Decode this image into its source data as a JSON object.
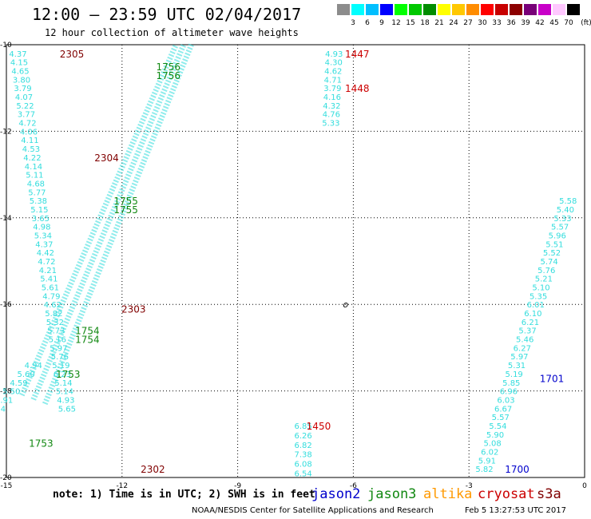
{
  "header": {
    "title": "12:00 – 23:59 UTC 02/04/2017",
    "subtitle": "12 hour collection of altimeter wave heights"
  },
  "legend": {
    "unit": "(ft)",
    "steps": [
      {
        "label": "3",
        "color": "#8c8c8c"
      },
      {
        "label": "6",
        "color": "#00ffff"
      },
      {
        "label": "9",
        "color": "#00bfff"
      },
      {
        "label": "12",
        "color": "#0000ff"
      },
      {
        "label": "15",
        "color": "#00ff00"
      },
      {
        "label": "18",
        "color": "#00c800"
      },
      {
        "label": "21",
        "color": "#008c00"
      },
      {
        "label": "24",
        "color": "#ffff00"
      },
      {
        "label": "27",
        "color": "#ffc800"
      },
      {
        "label": "30",
        "color": "#ff8c00"
      },
      {
        "label": "33",
        "color": "#ff0000"
      },
      {
        "label": "36",
        "color": "#c80000"
      },
      {
        "label": "39",
        "color": "#8c0000"
      },
      {
        "label": "42",
        "color": "#780078"
      },
      {
        "label": "45",
        "color": "#c800c8"
      },
      {
        "label": "70",
        "color": "#ffc8ff"
      },
      {
        "label": "",
        "color": "#000000"
      }
    ]
  },
  "map": {
    "lon_ticks": [
      "-15",
      "-12",
      "-9",
      "-6",
      "-3",
      "0"
    ],
    "lat_ticks": [
      "-10",
      "-12",
      "-14",
      "-16",
      "-18",
      "-20"
    ],
    "lon_range": [
      -15,
      0
    ],
    "lat_range": [
      -20,
      -10
    ],
    "grid": "dotted",
    "colors": {
      "wave": "#33dddd",
      "jason2": "#0000cc",
      "jason3": "#118811",
      "altika": "#ff9900",
      "cryosat": "#cc0000",
      "s3a": "#800000"
    },
    "time_labels": [
      {
        "text": "2305",
        "lon": -13.3,
        "lat": -10.2,
        "sat": "s3a"
      },
      {
        "text": "2304",
        "lon": -12.4,
        "lat": -12.6,
        "sat": "s3a"
      },
      {
        "text": "2303",
        "lon": -11.7,
        "lat": -16.1,
        "sat": "s3a"
      },
      {
        "text": "2302",
        "lon": -11.2,
        "lat": -19.8,
        "sat": "s3a"
      },
      {
        "text": "1756",
        "lon": -10.8,
        "lat": -10.5,
        "sat": "jason3"
      },
      {
        "text": "1756",
        "lon": -10.8,
        "lat": -10.7,
        "sat": "jason3"
      },
      {
        "text": "1755",
        "lon": -11.9,
        "lat": -13.6,
        "sat": "jason3"
      },
      {
        "text": "1755",
        "lon": -11.9,
        "lat": -13.8,
        "sat": "jason3"
      },
      {
        "text": "1754",
        "lon": -12.9,
        "lat": -16.6,
        "sat": "jason3"
      },
      {
        "text": "1754",
        "lon": -12.9,
        "lat": -16.8,
        "sat": "jason3"
      },
      {
        "text": "1753",
        "lon": -13.4,
        "lat": -17.6,
        "sat": "jason3"
      },
      {
        "text": "1753",
        "lon": -14.1,
        "lat": -19.2,
        "sat": "jason3"
      },
      {
        "text": "1447",
        "lon": -5.9,
        "lat": -10.2,
        "sat": "cryosat"
      },
      {
        "text": "1448",
        "lon": -5.9,
        "lat": -11.0,
        "sat": "cryosat"
      },
      {
        "text": "1450",
        "lon": -6.9,
        "lat": -18.8,
        "sat": "cryosat"
      },
      {
        "text": "1701",
        "lon": -0.85,
        "lat": -17.7,
        "sat": "jason2"
      },
      {
        "text": "1700",
        "lon": -1.75,
        "lat": -19.8,
        "sat": "jason2"
      }
    ],
    "wave_columns": [
      {
        "lon": -14.7,
        "lat_start": -10.2,
        "step": 0.2,
        "values": [
          "4.37",
          "4.15",
          "4.65",
          "3.80",
          "3.79",
          "4.07",
          "5.22",
          "3.77",
          "4.72",
          "4.06",
          "4.11",
          "4.53",
          "4.22",
          "4.14",
          "5.11",
          "4.68",
          "5.77",
          "5.38",
          "5.15",
          "3.65",
          "4.98",
          "5.34",
          "4.37",
          "4.42",
          "4.72",
          "4.21",
          "5.41",
          "5.61",
          "4.79",
          "4.62",
          "5.82",
          "5.32",
          "5.73",
          "5.16",
          "5.97",
          "5.76",
          "5.19",
          "6.23",
          "5.14",
          "5.14",
          "4.93",
          "5.65"
        ],
        "shift": 0.031
      },
      {
        "lon": -14.3,
        "lat_start": -17.4,
        "step": 0.2,
        "values": [
          "4.94",
          "5.60",
          "4.59",
          "5.50",
          "4.91",
          "5.74",
          "5.15",
          "5.26",
          "5.07"
        ],
        "shift": -0.19
      },
      {
        "lon": -6.5,
        "lat_start": -10.2,
        "step": 0.2,
        "values": [
          "4.93",
          "4.30",
          "4.62",
          "4.71",
          "3.79",
          "4.16",
          "4.32",
          "4.76",
          "5.33"
        ],
        "shift": -0.01
      },
      {
        "lon": -7.3,
        "lat_start": -18.8,
        "step": 0.22,
        "values": [
          "6.85",
          "6.26",
          "6.82",
          "7.38",
          "6.08",
          "6.54"
        ],
        "shift": 0
      },
      {
        "lon": -2.6,
        "lat_start": -19.8,
        "step": -0.2,
        "values": [
          "5.82",
          "5.91",
          "6.02",
          "5.08",
          "5.90",
          "5.54",
          "5.57",
          "6.67",
          "6.03",
          "6.96",
          "5.85",
          "5.19",
          "5.31",
          "5.97",
          "6.27",
          "5.46",
          "5.37",
          "6.21",
          "6.10",
          "6.01",
          "5.35",
          "5.10",
          "5.21",
          "5.76",
          "5.74",
          "5.52",
          "5.51",
          "5.96",
          "5.57",
          "5.33",
          "5.40",
          "5.58"
        ],
        "shift": 0.07
      }
    ],
    "tracks": [
      {
        "lon1": -14.6,
        "lat1": -18.1,
        "lon2": -10.6,
        "lat2": -10.0
      },
      {
        "lon1": -14.3,
        "lat1": -18.2,
        "lon2": -10.4,
        "lat2": -10.0
      },
      {
        "lon1": -14.0,
        "lat1": -18.3,
        "lon2": -10.2,
        "lat2": -10.0
      }
    ],
    "markers": [
      {
        "text": "o",
        "lon": -6.2,
        "lat": -16.0
      }
    ]
  },
  "footer": {
    "note": "note: 1) Time is in UTC; 2) SWH is in feet",
    "sats": [
      {
        "name": "jason2",
        "color": "#0000cc"
      },
      {
        "name": "jason3",
        "color": "#118811"
      },
      {
        "name": "altika",
        "color": "#ff9900"
      },
      {
        "name": "cryosat",
        "color": "#cc0000"
      },
      {
        "name": "s3a",
        "color": "#800000"
      }
    ],
    "credit": "NOAA/NESDIS Center for Satellite Applications and Research",
    "timestamp": "Feb  5 13:27:53 UTC 2017"
  }
}
